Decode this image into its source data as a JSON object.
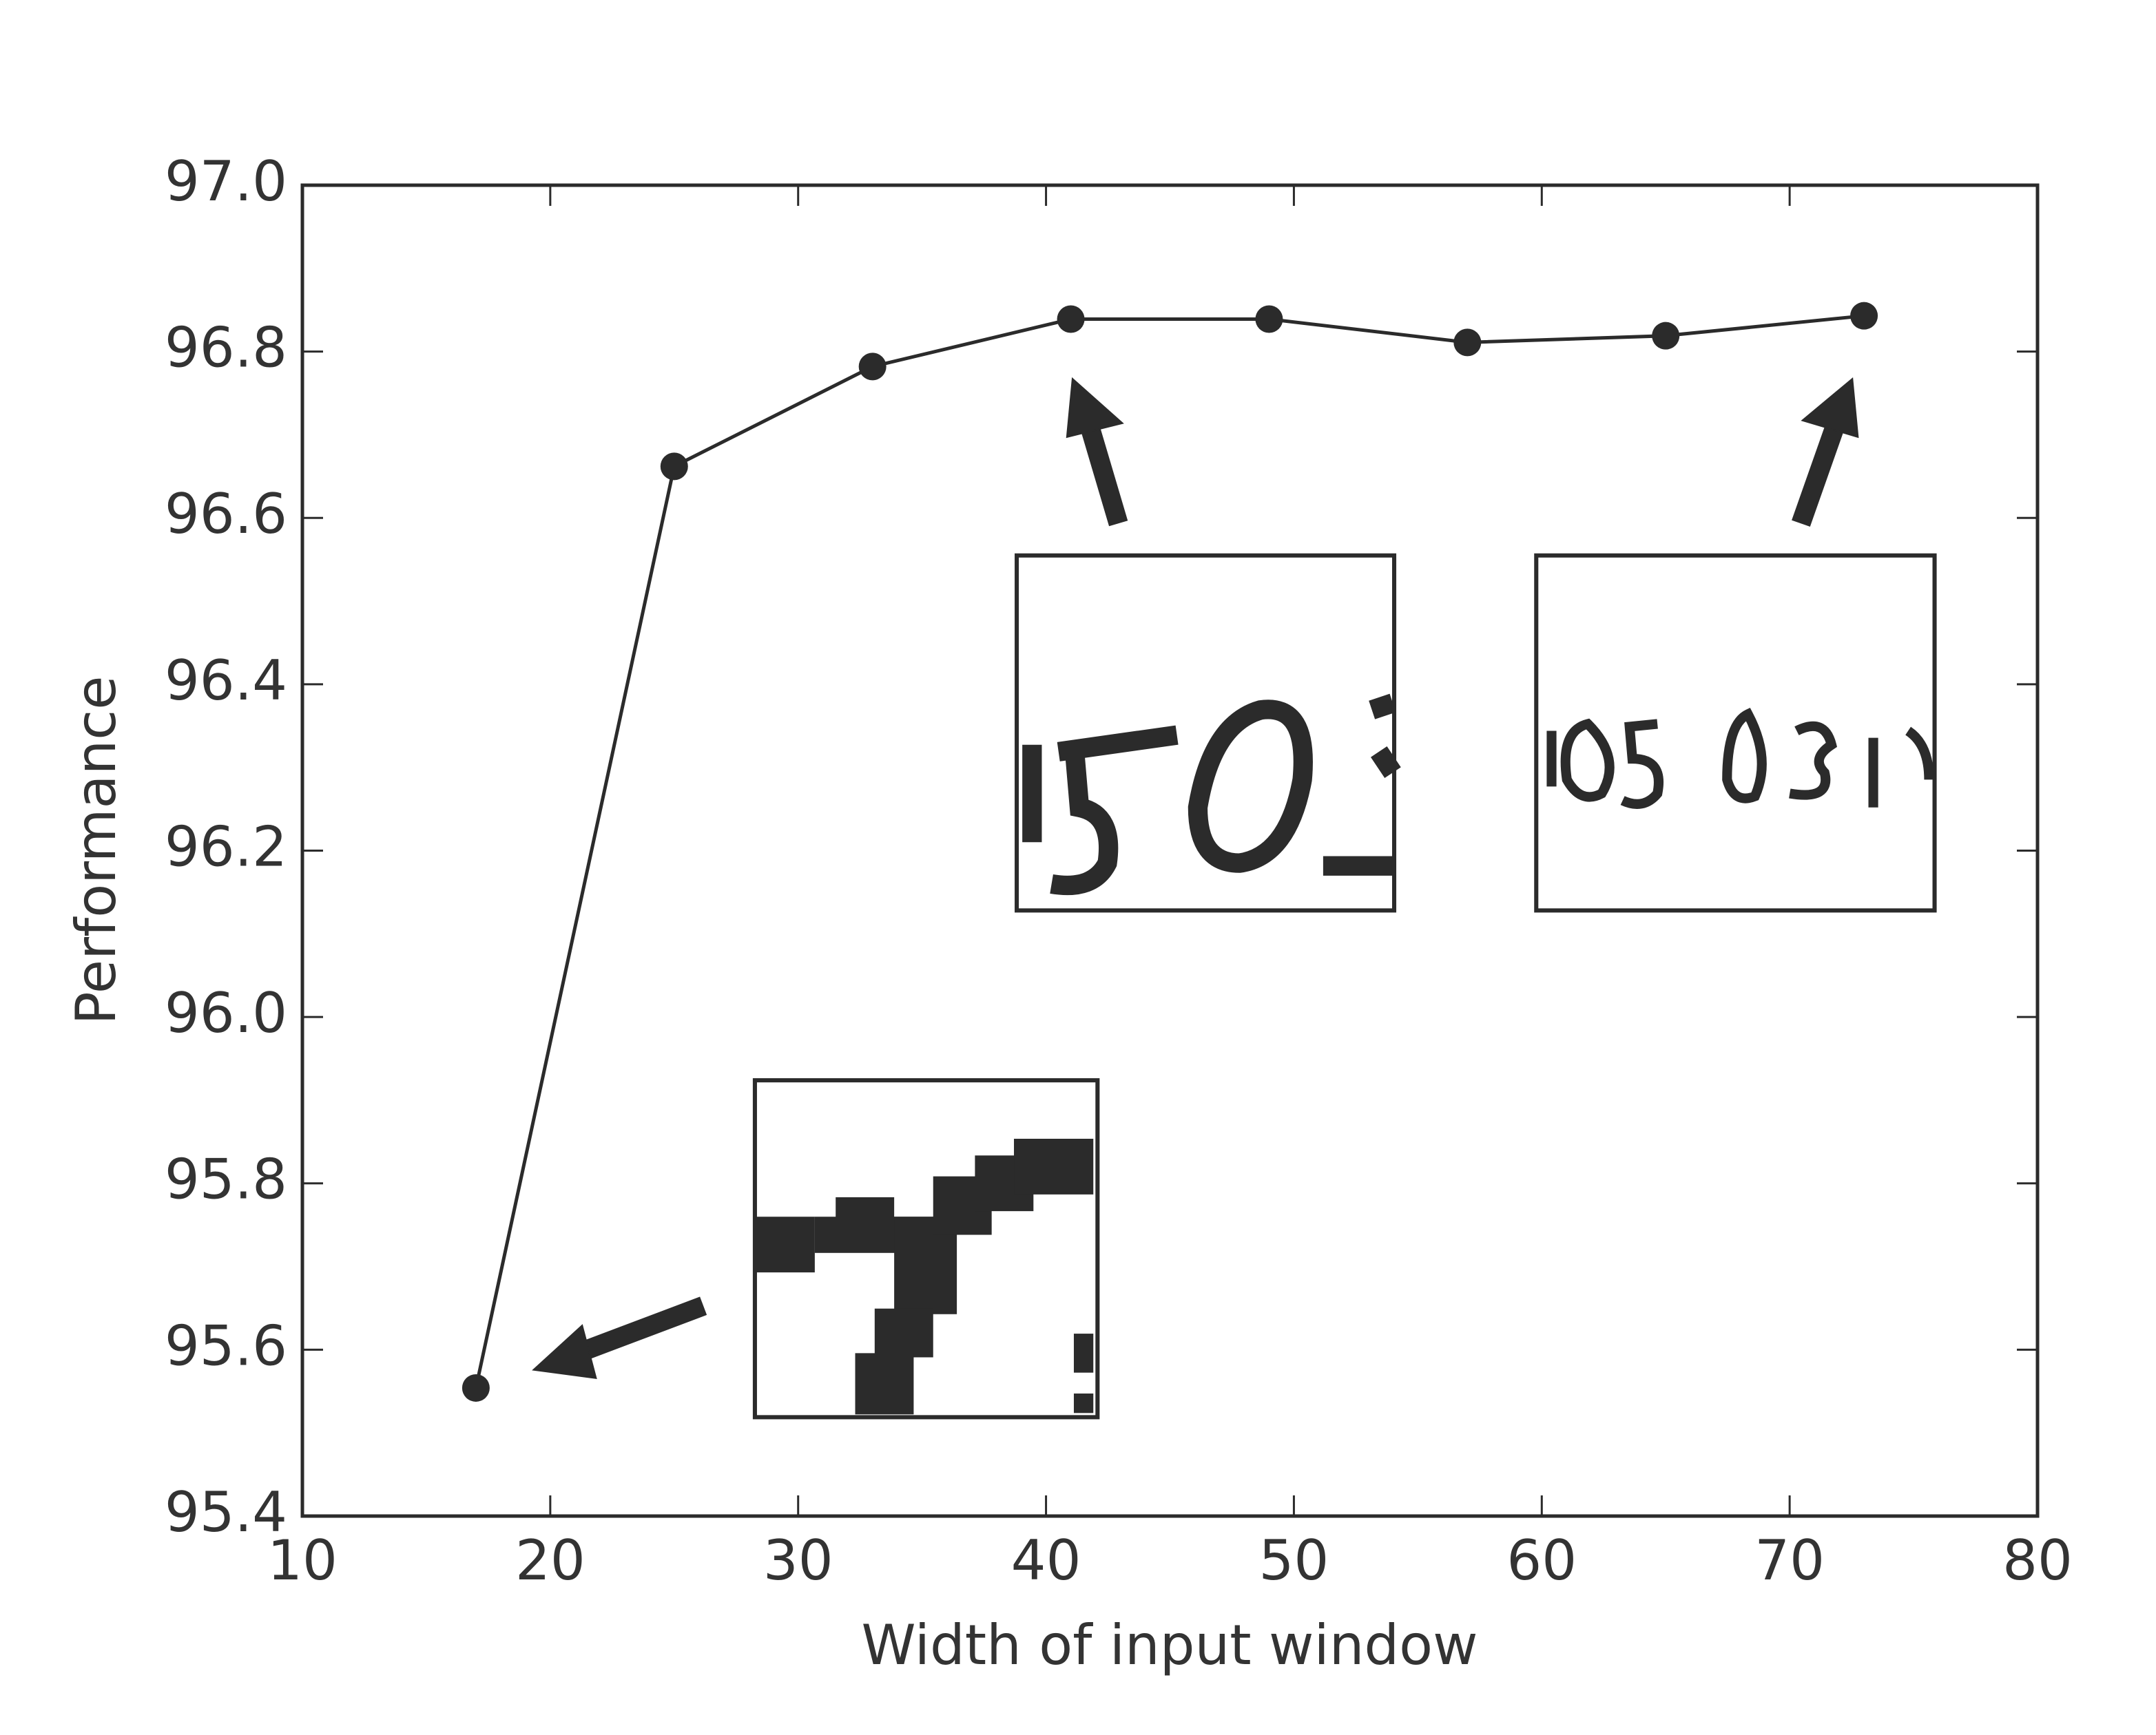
{
  "chart_data": {
    "type": "line",
    "x_label": "Width of input window",
    "y_label": "Performance",
    "x": [
      17,
      25,
      33,
      41,
      49,
      57,
      65,
      73
    ],
    "values": [
      95.554,
      96.662,
      96.782,
      96.839,
      96.839,
      96.811,
      96.819,
      96.843
    ],
    "color": "#2b2b2b",
    "xlim": [
      10,
      80
    ],
    "xticks": [
      10,
      20,
      30,
      40,
      50,
      60,
      70,
      80
    ],
    "ylim": [
      95.4,
      97.0
    ],
    "yticks": [
      95.4,
      95.6,
      95.8,
      {
        "value": 96.0,
        "label": "96.0"
      },
      96.2,
      96.4,
      96.6,
      96.8,
      {
        "value": 97.0,
        "label": "97.0"
      }
    ],
    "grid": false
  }
}
